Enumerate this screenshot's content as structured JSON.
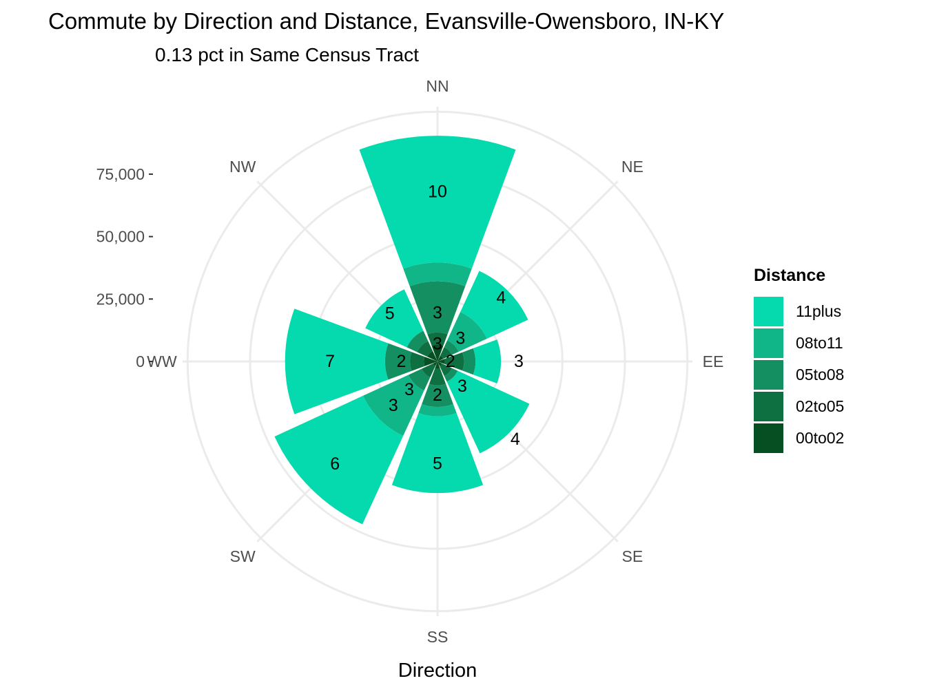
{
  "title": "Commute by Direction and Distance, Evansville-Owensboro, IN-KY",
  "subtitle": "0.13 pct in Same Census Tract",
  "chart_data": {
    "type": "bar",
    "coord": "polar",
    "xlabel": "Direction",
    "categories": [
      "NN",
      "NE",
      "EE",
      "SE",
      "SS",
      "SW",
      "WW",
      "NW"
    ],
    "y_ticks": [
      "0",
      "25,000",
      "50,000",
      "75,000"
    ],
    "y_tick_values": [
      0,
      25000,
      50000,
      75000
    ],
    "ylim": [
      0,
      102000
    ],
    "grid": true,
    "legend": {
      "title": "Distance",
      "position": "right",
      "items": [
        {
          "name": "11plus",
          "color": "#05D9AE"
        },
        {
          "name": "08to11",
          "color": "#10B588"
        },
        {
          "name": "05to08",
          "color": "#148F61"
        },
        {
          "name": "02to05",
          "color": "#0E7040"
        },
        {
          "name": "00to02",
          "color": "#054F22"
        }
      ]
    },
    "series": [
      {
        "name": "00to02",
        "values": [
          6800,
          2500,
          3000,
          2000,
          3000,
          2000,
          5500,
          4500
        ]
      },
      {
        "name": "02to05",
        "values": [
          4800,
          3800,
          7600,
          4400,
          6600,
          5000,
          5500,
          4500
        ]
      },
      {
        "name": "05to08",
        "values": [
          20500,
          3000,
          4600,
          2500,
          8600,
          5800,
          10000,
          4500
        ]
      },
      {
        "name": "08to11",
        "values": [
          7500,
          12500,
          0,
          0,
          3800,
          20000,
          0,
          0
        ]
      },
      {
        "name": "11plus",
        "values": [
          50800,
          18100,
          10200,
          31600,
          30700,
          39000,
          40000,
          18300
        ]
      }
    ],
    "annotations": [
      {
        "category": "NN",
        "label": "10",
        "radius": 68000
      },
      {
        "category": "NN",
        "label": "3",
        "radius": 19500
      },
      {
        "category": "NN",
        "label": "3",
        "radius": 7000
      },
      {
        "category": "NE",
        "label": "4",
        "radius": 36000
      },
      {
        "category": "NE",
        "label": "3",
        "radius": 13000
      },
      {
        "category": "EE",
        "label": "3",
        "radius": 32500
      },
      {
        "category": "SE",
        "label": "4",
        "radius": 44000
      },
      {
        "category": "SE",
        "label": "3",
        "radius": 14000
      },
      {
        "category": "SS",
        "label": "5",
        "radius": 41000
      },
      {
        "category": "SS",
        "label": "2",
        "radius": 13500
      },
      {
        "category": "SW",
        "label": "6",
        "radius": 58000
      },
      {
        "category": "SW",
        "label": "3",
        "radius": 25000
      },
      {
        "category": "SW",
        "label": "3",
        "radius": 16000
      },
      {
        "category": "WW",
        "label": "7",
        "radius": 43000
      },
      {
        "category": "WW",
        "label": "2",
        "radius": 14500
      },
      {
        "category": "NW",
        "label": "5",
        "radius": 27000
      },
      {
        "category": "EE",
        "label": "2",
        "radius": 5200
      }
    ]
  }
}
